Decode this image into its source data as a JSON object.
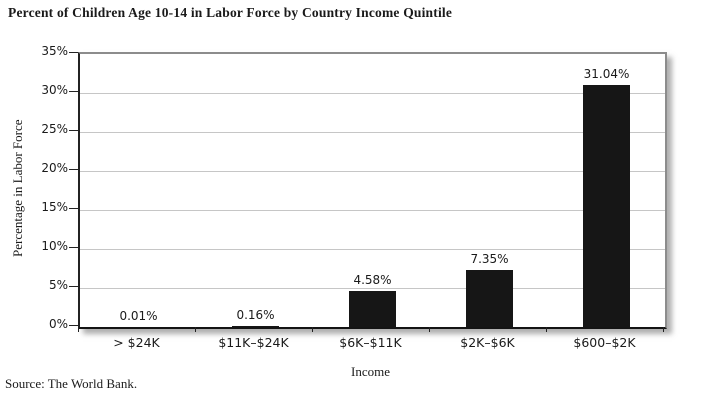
{
  "page": {
    "source": "Source: The World Bank."
  },
  "chart_data": {
    "type": "bar",
    "title": "Percent of Children Age 10-14 in Labor Force by Country Income Quintile",
    "categories": [
      "> $24K",
      "$11K–$24K",
      "$6K–$11K",
      "$2K–$6K",
      "$600–$2K"
    ],
    "values": [
      0.01,
      0.16,
      4.58,
      7.35,
      31.04
    ],
    "data_labels": [
      "0.01%",
      "0.16%",
      "4.58%",
      "7.35%",
      "31.04%"
    ],
    "xlabel": "Income",
    "ylabel": "Percentage in Labor Force",
    "ylim": [
      0,
      35
    ],
    "ytick_step": 5,
    "ytick_labels": [
      "0%",
      "5%",
      "10%",
      "15%",
      "20%",
      "25%",
      "30%",
      "35%"
    ],
    "grid": true,
    "legend": "none",
    "colors": {
      "bar": "#161616",
      "gridline": "#c6c6c6",
      "plot_border": "#8c8c8c",
      "axis": "#1a1a1a",
      "background": "#ffffff"
    }
  }
}
